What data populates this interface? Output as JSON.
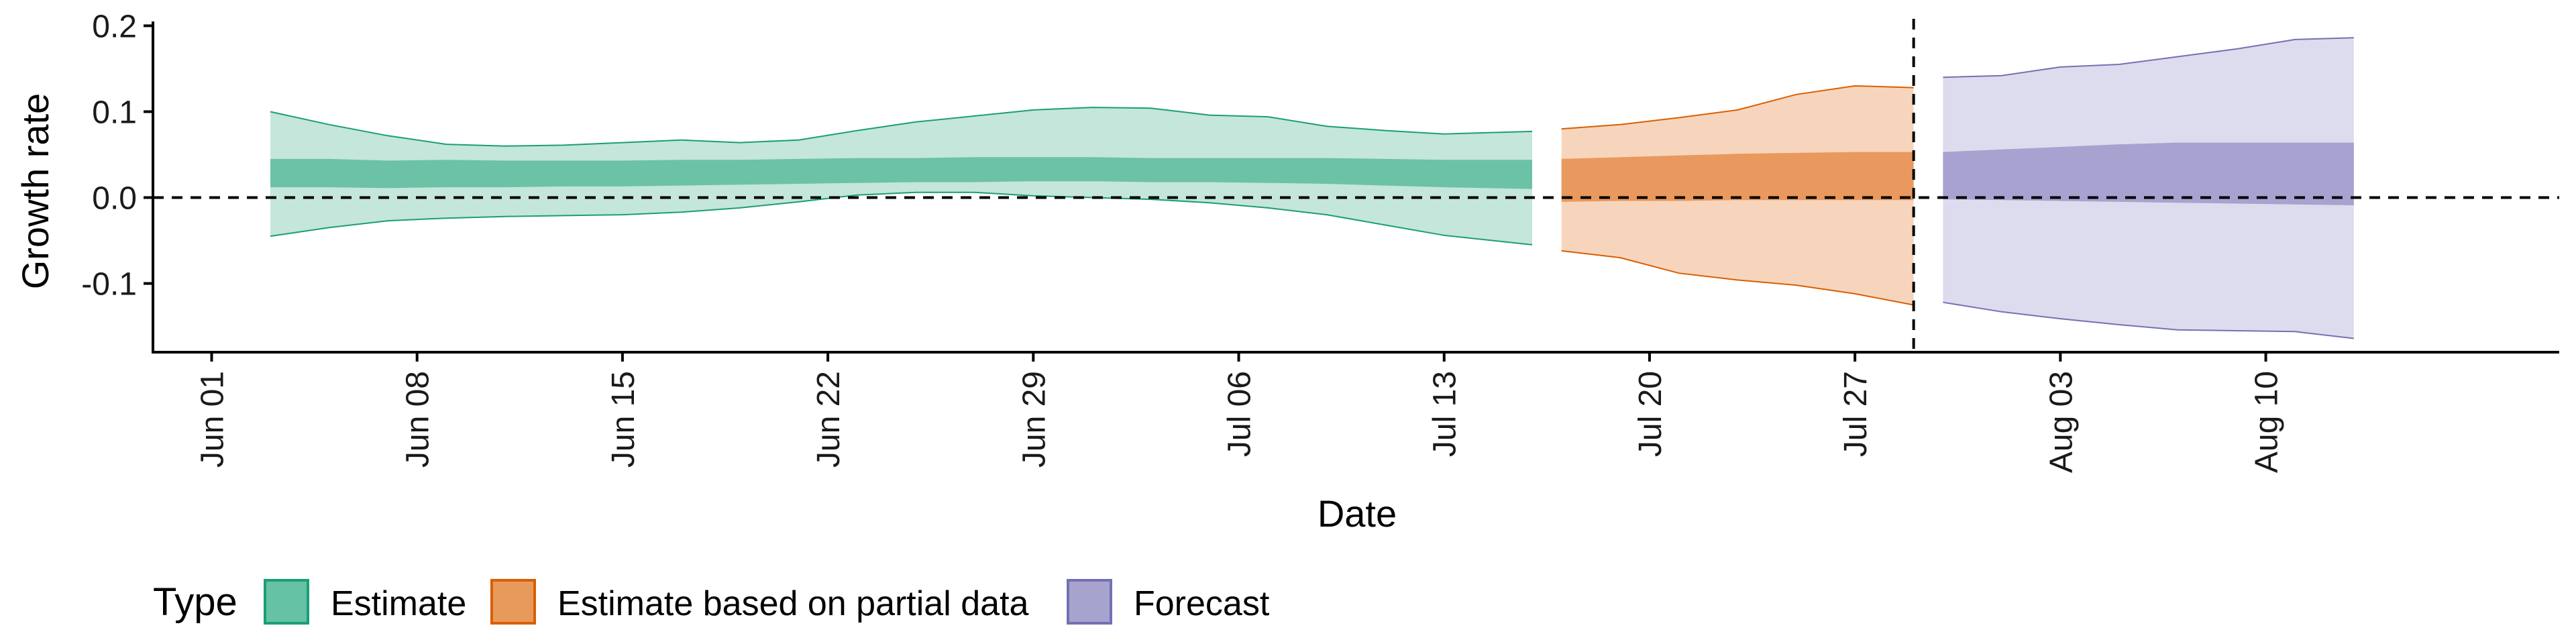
{
  "chart_data": {
    "type": "area",
    "xlabel": "Date",
    "ylabel": "Growth rate",
    "x_ticks": [
      "Jun 01",
      "Jun 08",
      "Jun 15",
      "Jun 22",
      "Jun 29",
      "Jul 06",
      "Jul 13",
      "Jul 20",
      "Jul 27",
      "Aug 03",
      "Aug 10"
    ],
    "x_tick_dates": [
      "2020-06-01",
      "2020-06-08",
      "2020-06-15",
      "2020-06-22",
      "2020-06-29",
      "2020-07-06",
      "2020-07-13",
      "2020-07-20",
      "2020-07-27",
      "2020-08-03",
      "2020-08-10"
    ],
    "xlim": [
      "2020-05-30",
      "2020-08-20"
    ],
    "y_ticks": [
      "-0.1",
      "0.0",
      "0.1",
      "0.2"
    ],
    "y_tick_values": [
      -0.1,
      0.0,
      0.1,
      0.2
    ],
    "ylim": [
      -0.18,
      0.205
    ],
    "hline_y": 0.0,
    "vline_date": "2020-07-29",
    "legend": {
      "title": "Type",
      "position": "bottom-left",
      "items": [
        {
          "label": "Estimate",
          "fill": "#66c2a5",
          "stroke": "#1b9e77"
        },
        {
          "label": "Estimate based on partial data",
          "fill": "#e89a5d",
          "stroke": "#d95f02"
        },
        {
          "label": "Forecast",
          "fill": "#a7a3cf",
          "stroke": "#7570b3"
        }
      ]
    },
    "series": [
      {
        "name": "Estimate",
        "outer_color": "#c5e6da",
        "outer_stroke": "#1b9e77",
        "inner_color": "#6cc2a6",
        "x": [
          "2020-06-03",
          "2020-06-05",
          "2020-06-07",
          "2020-06-09",
          "2020-06-11",
          "2020-06-13",
          "2020-06-15",
          "2020-06-17",
          "2020-06-19",
          "2020-06-21",
          "2020-06-23",
          "2020-06-25",
          "2020-06-27",
          "2020-06-29",
          "2020-07-01",
          "2020-07-03",
          "2020-07-05",
          "2020-07-07",
          "2020-07-09",
          "2020-07-11",
          "2020-07-13",
          "2020-07-16"
        ],
        "upper_90": [
          0.1,
          0.085,
          0.072,
          0.062,
          0.06,
          0.061,
          0.064,
          0.067,
          0.064,
          0.067,
          0.078,
          0.088,
          0.095,
          0.102,
          0.105,
          0.104,
          0.096,
          0.094,
          0.083,
          0.078,
          0.074,
          0.077
        ],
        "lower_90": [
          -0.045,
          -0.035,
          -0.027,
          -0.024,
          -0.022,
          -0.021,
          -0.02,
          -0.017,
          -0.012,
          -0.005,
          0.003,
          0.006,
          0.006,
          0.002,
          0.0,
          -0.002,
          -0.006,
          -0.012,
          -0.02,
          -0.032,
          -0.044,
          -0.055
        ],
        "upper_50": [
          0.045,
          0.045,
          0.043,
          0.044,
          0.043,
          0.043,
          0.043,
          0.044,
          0.044,
          0.045,
          0.046,
          0.046,
          0.047,
          0.047,
          0.047,
          0.046,
          0.046,
          0.046,
          0.046,
          0.045,
          0.044,
          0.044
        ],
        "lower_50": [
          0.012,
          0.012,
          0.011,
          0.012,
          0.012,
          0.013,
          0.013,
          0.014,
          0.015,
          0.016,
          0.017,
          0.018,
          0.018,
          0.019,
          0.019,
          0.018,
          0.018,
          0.017,
          0.016,
          0.014,
          0.012,
          0.01
        ]
      },
      {
        "name": "Estimate based on partial data",
        "outer_color": "#f7d5bc",
        "outer_stroke": "#d95f02",
        "inner_color": "#e9995d",
        "x": [
          "2020-07-17",
          "2020-07-19",
          "2020-07-21",
          "2020-07-23",
          "2020-07-25",
          "2020-07-27",
          "2020-07-29"
        ],
        "upper_90": [
          0.08,
          0.085,
          0.093,
          0.102,
          0.12,
          0.13,
          0.128
        ],
        "lower_90": [
          -0.062,
          -0.07,
          -0.088,
          -0.096,
          -0.102,
          -0.112,
          -0.125
        ],
        "upper_50": [
          0.045,
          0.047,
          0.049,
          0.051,
          0.052,
          0.053,
          0.053
        ],
        "lower_50": [
          -0.005,
          -0.004,
          -0.004,
          -0.003,
          -0.003,
          -0.003,
          -0.003
        ]
      },
      {
        "name": "Forecast",
        "outer_color": "#dddcee",
        "outer_stroke": "#7570b3",
        "inner_color": "#a7a2cf",
        "x": [
          "2020-07-30",
          "2020-08-01",
          "2020-08-03",
          "2020-08-05",
          "2020-08-07",
          "2020-08-09",
          "2020-08-11",
          "2020-08-13"
        ],
        "upper_90": [
          0.14,
          0.142,
          0.152,
          0.155,
          0.164,
          0.173,
          0.184,
          0.186
        ],
        "lower_90": [
          -0.122,
          -0.133,
          -0.141,
          -0.148,
          -0.154,
          -0.155,
          -0.156,
          -0.164
        ],
        "upper_50": [
          0.053,
          0.056,
          0.059,
          0.062,
          0.064,
          0.064,
          0.064,
          0.064
        ],
        "lower_50": [
          -0.002,
          -0.003,
          -0.004,
          -0.005,
          -0.006,
          -0.007,
          -0.008,
          -0.009
        ]
      }
    ]
  }
}
